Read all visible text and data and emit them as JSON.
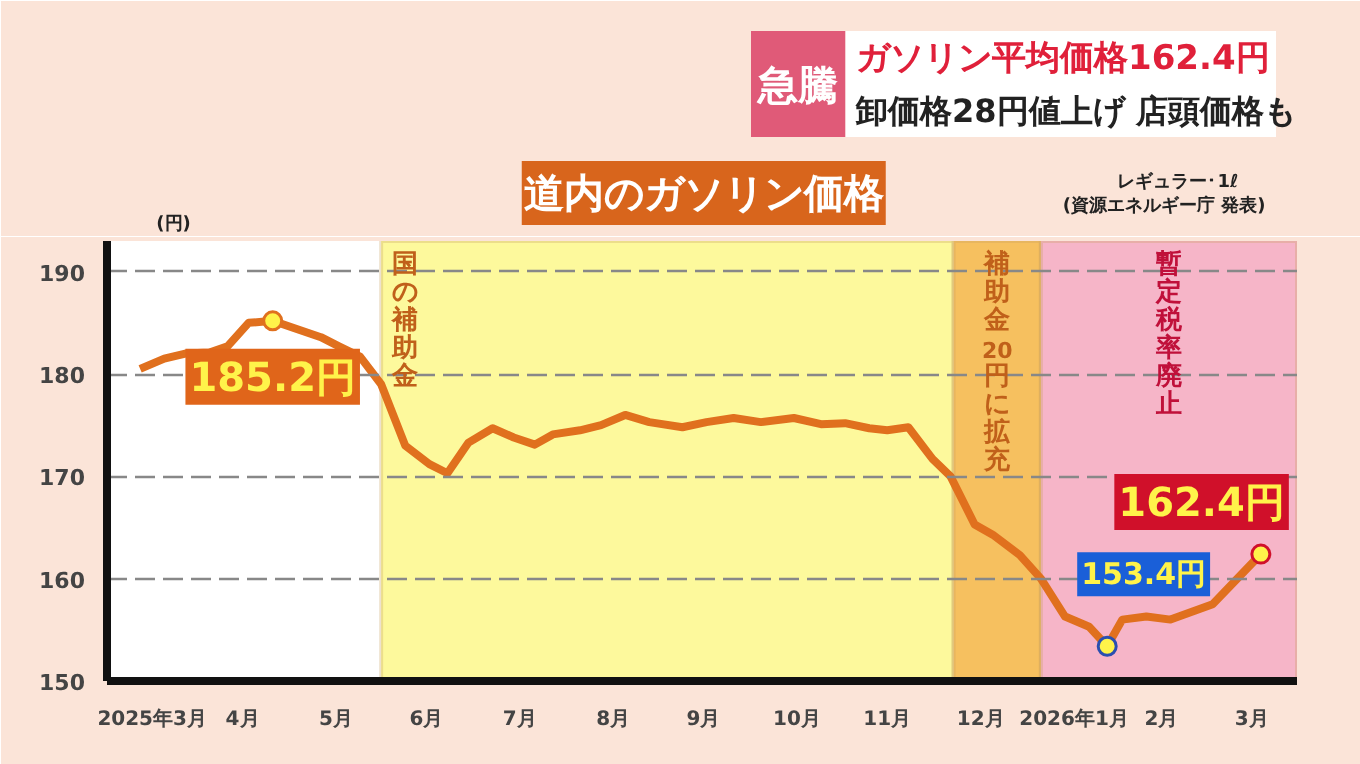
{
  "chart_data": {
    "type": "line",
    "title": "道内のガソリン価格",
    "ylabel": "(円)",
    "annotations": [
      "急騰",
      "ガソリン平均価格162.4円",
      "卸価格28円値上げ 店頭価格も",
      "レギュラー･1ℓ",
      "(資源エネルギー庁 発表)",
      {
        "text": "185.2円",
        "x": "2025-04-25",
        "y": 185.2
      },
      {
        "text": "153.4円",
        "x": "2026-01-27",
        "y": 153.4
      },
      {
        "text": "162.4円",
        "x": "2026-03-19",
        "y": 162.4
      }
    ],
    "series": [
      {
        "color": "#e0701e",
        "x": [
          "2025-03-12",
          "2025-03-20",
          "2025-03-27",
          "2025-04-04",
          "2025-04-10",
          "2025-04-17",
          "2025-04-25",
          "2025-05-02",
          "2025-05-11",
          "2025-05-17",
          "2025-05-24",
          "2025-05-31",
          "2025-06-08",
          "2025-06-16",
          "2025-06-22",
          "2025-06-29",
          "2025-07-07",
          "2025-07-14",
          "2025-07-21",
          "2025-07-27",
          "2025-08-05",
          "2025-08-12",
          "2025-08-20",
          "2025-08-28",
          "2025-09-08",
          "2025-09-16",
          "2025-09-25",
          "2025-10-04",
          "2025-10-15",
          "2025-10-24",
          "2025-11-01",
          "2025-11-09",
          "2025-11-15",
          "2025-11-22",
          "2025-11-30",
          "2025-12-06",
          "2025-12-14",
          "2025-12-20",
          "2025-12-29",
          "2026-01-05",
          "2026-01-13",
          "2026-01-21",
          "2026-01-27",
          "2026-02-01",
          "2026-02-09",
          "2026-02-17",
          "2026-03-03",
          "2026-03-19"
        ],
        "values": [
          180.5,
          181.5,
          182.0,
          182.1,
          182.7,
          185.0,
          185.2,
          184.5,
          183.6,
          182.7,
          181.7,
          179.0,
          173.0,
          171.2,
          170.3,
          173.3,
          174.7,
          173.8,
          173.1,
          174.1,
          174.5,
          175.0,
          176.0,
          175.3,
          174.8,
          175.3,
          175.7,
          175.3,
          175.7,
          175.1,
          175.2,
          174.7,
          174.5,
          174.8,
          171.7,
          170.0,
          165.3,
          164.3,
          162.3,
          160.0,
          156.3,
          155.3,
          153.4,
          156.0,
          156.3,
          156.0,
          157.5,
          162.4
        ]
      }
    ],
    "xlim": [
      "2025-03-01",
      "2026-03-31"
    ],
    "xticks": [
      {
        "value": "2025-03-16",
        "label": "2025年3月"
      },
      {
        "value": "2025-04-15",
        "label": "4月"
      },
      {
        "value": "2025-05-16",
        "label": "5月"
      },
      {
        "value": "2025-06-15",
        "label": "6月"
      },
      {
        "value": "2025-07-16",
        "label": "7月"
      },
      {
        "value": "2025-08-16",
        "label": "8月"
      },
      {
        "value": "2025-09-15",
        "label": "9月"
      },
      {
        "value": "2025-10-16",
        "label": "10月"
      },
      {
        "value": "2025-11-15",
        "label": "11月"
      },
      {
        "value": "2025-12-16",
        "label": "12月"
      },
      {
        "value": "2026-01-16",
        "label": "2026年1月"
      },
      {
        "value": "2026-02-14",
        "label": "2月"
      },
      {
        "value": "2026-03-16",
        "label": "3月"
      }
    ],
    "ylim": [
      150,
      193
    ],
    "yticks": [
      150,
      160,
      170,
      180,
      190
    ],
    "bands": [
      {
        "axis": "x",
        "from": "2025-05-31",
        "to": "2025-12-07",
        "label": "国の補助金",
        "color": "#fdf99c"
      },
      {
        "axis": "x",
        "from": "2025-12-07",
        "to": "2026-01-05",
        "label": "補助金20円に拡充",
        "color": "#f6c05f"
      },
      {
        "axis": "x",
        "from": "2026-01-05",
        "to": "2026-03-31",
        "label": "暫定税率廃止",
        "color": "#f6b5c8"
      }
    ],
    "grid": "y",
    "marker": "none",
    "line_style": "solid"
  }
}
